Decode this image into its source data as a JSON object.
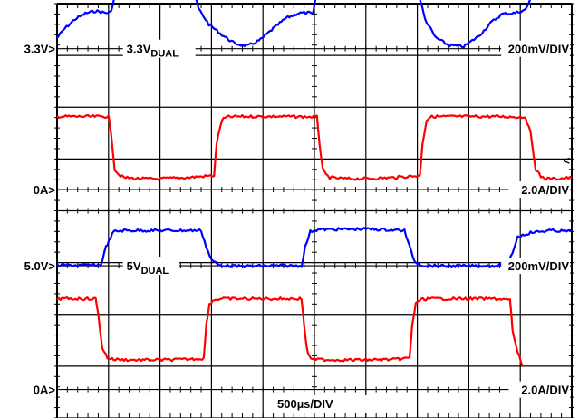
{
  "chart_data": {
    "type": "line",
    "title": "",
    "xlabel": "",
    "ylabel": "",
    "grid": true,
    "x_range_divisions": [
      0,
      10
    ],
    "y_range_divisions": [
      0,
      8
    ],
    "time_scale_label": "500µs/DIV",
    "markers": [
      {
        "id": "m-3v3",
        "text": "3.3V>",
        "division": 7.13
      },
      {
        "id": "m-0a-top",
        "text": "0A>",
        "division": 4.41
      },
      {
        "id": "m-5v",
        "text": "5.0V>",
        "division": 2.94
      },
      {
        "id": "m-0a-bottom",
        "text": "0A>",
        "division": 0.55
      }
    ],
    "scale_labels": [
      {
        "id": "scale-3v3",
        "text": "200mV/DIV",
        "division": 7.13
      },
      {
        "id": "scale-i-top",
        "text": "2.0A/DIV",
        "division": 4.41
      },
      {
        "id": "scale-5v",
        "text": "200mV/DIV",
        "division": 2.94
      },
      {
        "id": "scale-i-bottom",
        "text": "2.0A/DIV",
        "division": 0.55
      }
    ],
    "trace_labels": [
      {
        "id": "label-3v3",
        "main": "3.3V",
        "sub": "DUAL",
        "x_div": 1.35,
        "division": 7.13
      },
      {
        "id": "label-5v",
        "main": "5V",
        "sub": "DUAL",
        "x_div": 1.35,
        "division": 2.94
      }
    ],
    "series": [
      {
        "id": "trace-3v3-voltage",
        "color": "#0000ff",
        "x": [
          0,
          0.15,
          0.35,
          0.55,
          0.75,
          0.95,
          1.05,
          1.15,
          1.3,
          1.5,
          1.8,
          2.1,
          2.45,
          2.6,
          2.75,
          2.95,
          3.2,
          3.45,
          3.7,
          3.95,
          4.2,
          4.45,
          4.7,
          4.9,
          4.97,
          5.05,
          5.3,
          5.6,
          5.9,
          6.25,
          6.6,
          6.95,
          7.0,
          7.15,
          7.35,
          7.6,
          7.9,
          8.2,
          8.45,
          8.65,
          8.9,
          9.1,
          9.4,
          9.7,
          10.0
        ],
        "y": [
          7.34,
          7.52,
          7.7,
          7.81,
          7.86,
          7.82,
          7.84,
          8.3,
          8.5,
          8.6,
          8.6,
          8.52,
          8.48,
          8.45,
          7.9,
          7.6,
          7.4,
          7.23,
          7.18,
          7.3,
          7.52,
          7.72,
          7.82,
          7.82,
          7.79,
          8.22,
          8.56,
          8.65,
          8.64,
          8.57,
          8.5,
          8.47,
          8.3,
          7.7,
          7.35,
          7.2,
          7.17,
          7.38,
          7.65,
          7.8,
          7.82,
          7.88,
          8.5,
          8.63,
          8.6
        ]
      },
      {
        "id": "trace-3v3-current",
        "color": "#ff0000",
        "x": [
          0,
          1.0,
          1.05,
          1.12,
          1.2,
          1.3,
          1.6,
          2.0,
          2.5,
          3.05,
          3.1,
          3.2,
          3.3,
          3.5,
          4.0,
          4.5,
          5.05,
          5.1,
          5.16,
          5.22,
          5.3,
          5.6,
          6.0,
          6.5,
          7.05,
          7.1,
          7.18,
          7.25,
          7.35,
          7.8,
          8.5,
          9.1,
          9.2,
          9.3,
          9.4,
          9.5,
          9.7,
          10.0
        ],
        "y": [
          5.82,
          5.82,
          5.5,
          4.8,
          4.7,
          4.64,
          4.62,
          4.62,
          4.64,
          4.68,
          5.3,
          5.75,
          5.81,
          5.82,
          5.82,
          5.82,
          5.81,
          5.3,
          4.8,
          4.7,
          4.64,
          4.62,
          4.62,
          4.64,
          4.68,
          5.3,
          5.75,
          5.81,
          5.82,
          5.82,
          5.82,
          5.81,
          5.5,
          4.8,
          4.66,
          4.62,
          4.62,
          4.64
        ]
      },
      {
        "id": "trace-5v-voltage",
        "color": "#0000ff",
        "x": [
          0,
          0.5,
          0.85,
          0.95,
          1.1,
          1.3,
          2.0,
          2.8,
          2.9,
          3.0,
          3.15,
          3.5,
          4.2,
          4.75,
          4.82,
          4.92,
          5.05,
          5.3,
          6.0,
          6.75,
          6.85,
          6.95,
          7.1,
          7.5,
          8.2,
          8.75,
          8.85,
          8.95,
          9.2,
          9.4,
          9.6,
          10.0
        ],
        "y": [
          2.95,
          2.95,
          2.95,
          3.3,
          3.6,
          3.62,
          3.62,
          3.62,
          3.3,
          3.05,
          2.95,
          2.93,
          2.94,
          2.94,
          3.3,
          3.6,
          3.64,
          3.64,
          3.65,
          3.62,
          3.3,
          3.02,
          2.95,
          2.93,
          2.94,
          2.94,
          3.2,
          3.5,
          3.58,
          3.6,
          3.62,
          3.6
        ]
      },
      {
        "id": "trace-5v-current",
        "color": "#ff0000",
        "x": [
          0,
          0.75,
          0.8,
          0.88,
          0.98,
          1.1,
          1.5,
          2.0,
          2.5,
          2.85,
          2.9,
          2.96,
          3.05,
          3.2,
          3.6,
          4.2,
          4.75,
          4.8,
          4.85,
          4.9,
          5.0,
          5.5,
          6.0,
          6.6,
          6.85,
          6.9,
          6.97,
          7.05,
          7.2,
          7.8,
          8.5,
          8.8,
          8.85,
          8.95,
          9.05
        ],
        "y": [
          2.3,
          2.3,
          2.0,
          1.35,
          1.16,
          1.13,
          1.12,
          1.12,
          1.13,
          1.15,
          1.8,
          2.2,
          2.28,
          2.3,
          2.3,
          2.3,
          2.3,
          1.8,
          1.35,
          1.18,
          1.13,
          1.12,
          1.12,
          1.13,
          1.16,
          1.8,
          2.2,
          2.28,
          2.3,
          2.3,
          2.3,
          2.28,
          1.7,
          1.25,
          1.0
        ]
      }
    ],
    "side_markers": [
      {
        "id": "right-arrow-marker",
        "text": "<",
        "division": 4.98
      }
    ]
  }
}
